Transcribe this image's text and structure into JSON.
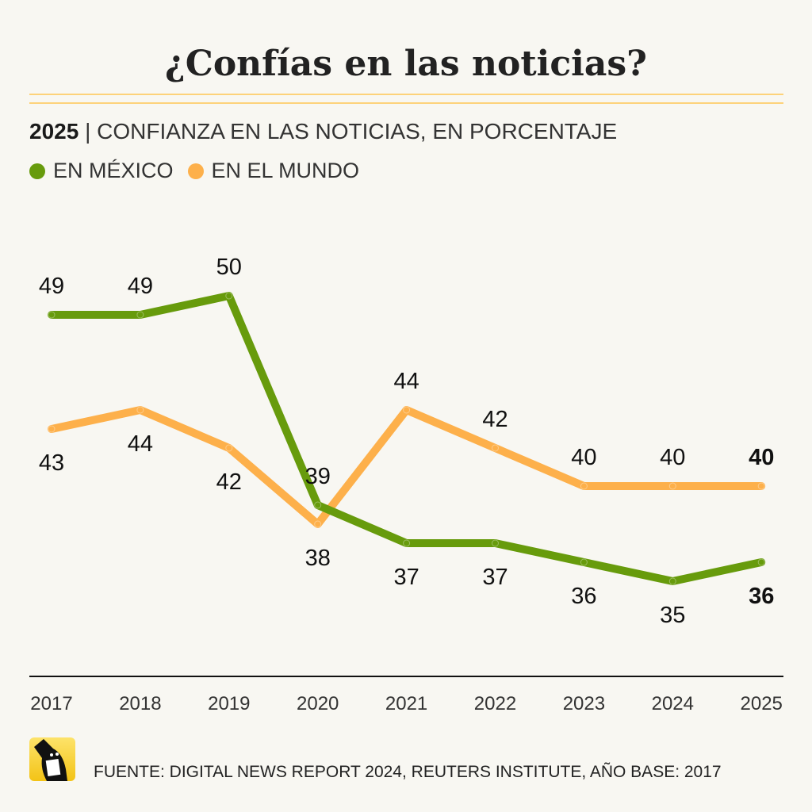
{
  "title": "¿Confías en las noticias?",
  "subtitle": {
    "year": "2025",
    "text": "| CONFIANZA EN LAS NOTICIAS, EN PORCENTAJE"
  },
  "source": "FUENTE: DIGITAL NEWS REPORT 2024, REUTERS INSTITUTE, AÑO BASE: 2017",
  "chart_data": {
    "type": "line",
    "categories": [
      "2017",
      "2018",
      "2019",
      "2020",
      "2021",
      "2022",
      "2023",
      "2024",
      "2025"
    ],
    "series": [
      {
        "name": "EN MÉXICO",
        "color": "#679b0c",
        "values": [
          49,
          49,
          50,
          39,
          37,
          37,
          36,
          35,
          36
        ]
      },
      {
        "name": "EN EL MUNDO",
        "color": "#fdb04b",
        "values": [
          43,
          44,
          42,
          38,
          44,
          42,
          40,
          40,
          40
        ]
      }
    ],
    "legend_position": "top-left",
    "grid": false
  }
}
